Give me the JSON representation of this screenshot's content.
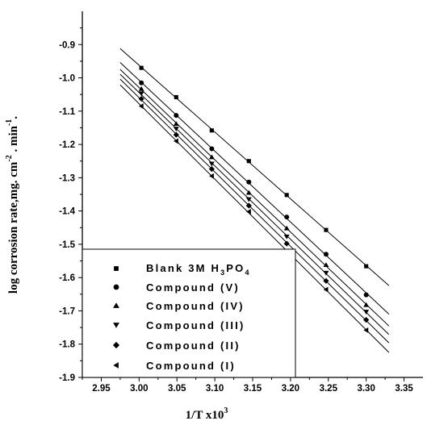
{
  "chart_data": {
    "type": "scatter",
    "xlabel": {
      "main": "1/T  x10",
      "sup": "3"
    },
    "ylabel": {
      "main": "log corrosion rate,mg. cm",
      "sup1": "-2",
      "mid": " . min",
      "sup2": "-1",
      "tail": "."
    },
    "xlim": [
      2.925,
      3.375
    ],
    "ylim": [
      -1.9,
      -0.8
    ],
    "xticks": [
      "2.95",
      "3.00",
      "3.05",
      "3.10",
      "3.15",
      "3.20",
      "3.25",
      "3.30",
      "3.35"
    ],
    "yticks": [
      "-1.9",
      "-1.8",
      "-1.7",
      "-1.6",
      "-1.5",
      "-1.4",
      "-1.3",
      "-1.2",
      "-1.1",
      "-1.0",
      "-0.9"
    ],
    "x": [
      3.003,
      3.049,
      3.096,
      3.145,
      3.195,
      3.247,
      3.3
    ],
    "fit_x_range": [
      2.975,
      3.33
    ],
    "legend_position": "bottom-left",
    "series": [
      {
        "name": "Blank 3M H3PO4",
        "label": {
          "main": "Blank 3M H",
          "sub1": "3",
          "mid": "PO",
          "sub2": "4"
        },
        "marker": "square",
        "values": [
          -0.97,
          -1.058,
          -1.158,
          -1.25,
          -1.352,
          -1.457,
          -1.566
        ]
      },
      {
        "name": "Compound (V)",
        "label": {
          "main": "Compound (V)"
        },
        "marker": "circle",
        "values": [
          -1.015,
          -1.113,
          -1.213,
          -1.313,
          -1.418,
          -1.53,
          -1.652
        ]
      },
      {
        "name": "Compound (IV)",
        "label": {
          "main": "Compound (IV)"
        },
        "marker": "triangle-up",
        "values": [
          -1.033,
          -1.138,
          -1.238,
          -1.345,
          -1.452,
          -1.562,
          -1.682
        ]
      },
      {
        "name": "Compound (III)",
        "label": {
          "main": "Compound (III)"
        },
        "marker": "triangle-down",
        "values": [
          -1.047,
          -1.153,
          -1.258,
          -1.365,
          -1.477,
          -1.586,
          -1.703
        ]
      },
      {
        "name": "Compound (II)",
        "label": {
          "main": "Compound (II)"
        },
        "marker": "diamond",
        "values": [
          -1.063,
          -1.171,
          -1.274,
          -1.384,
          -1.498,
          -1.61,
          -1.727
        ]
      },
      {
        "name": "Compound (I)",
        "label": {
          "main": "Compound (I)"
        },
        "marker": "triangle-left",
        "values": [
          -1.085,
          -1.19,
          -1.295,
          -1.402,
          -1.522,
          -1.636,
          -1.758
        ]
      }
    ]
  }
}
